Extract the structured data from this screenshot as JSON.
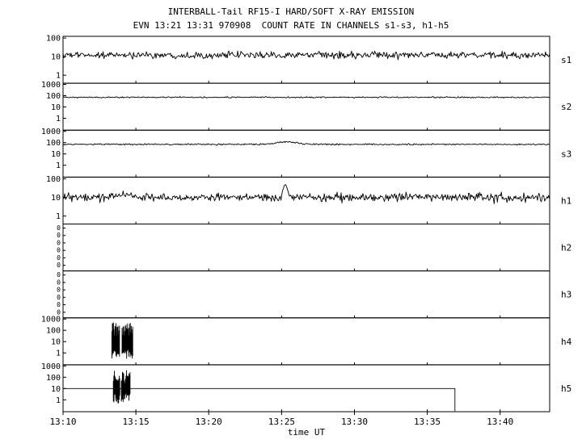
{
  "chart_data": {
    "type": "line",
    "title": "INTERBALL-Tail RF15-I HARD/SOFT X-RAY EMISSION",
    "subtitle": "EVN 13:21 13:31 970908  COUNT RATE IN CHANNELS s1-s3, h1-h5",
    "xlabel": "time UT",
    "x_ticks": [
      "13:10",
      "13:15",
      "13:20",
      "13:25",
      "13:30",
      "13:35",
      "13:40"
    ],
    "xlim_minutes": [
      790,
      823.4
    ],
    "grid": false,
    "legend": "none",
    "panels": [
      {
        "label": "s1",
        "yticks": [
          "100",
          "10",
          "1"
        ],
        "ylog_top": 2.09,
        "ylog_bottom": -0.43,
        "series": {
          "kind": "noisy",
          "baseline": 12,
          "sigma": 0.09,
          "features": []
        }
      },
      {
        "label": "s2",
        "yticks": [
          "1000",
          "100",
          "10",
          "1"
        ],
        "ylog_top": 3.1,
        "ylog_bottom": -1.05,
        "series": {
          "kind": "noisy",
          "baseline": 72,
          "sigma": 0.028,
          "features": []
        }
      },
      {
        "label": "s3",
        "yticks": [
          "1000",
          "100",
          "10",
          "1"
        ],
        "ylog_top": 3.1,
        "ylog_bottom": -1.05,
        "series": {
          "kind": "noisy",
          "baseline": 70,
          "sigma": 0.03,
          "features": [
            {
              "kind": "factor_bump",
              "center": 805.4,
              "width": 0.9,
              "factor": 0.65
            }
          ]
        }
      },
      {
        "label": "h1",
        "yticks": [
          "100",
          "10",
          "1"
        ],
        "ylog_top": 2.09,
        "ylog_bottom": -0.43,
        "series": {
          "kind": "noisy",
          "baseline": 10,
          "sigma": 0.11,
          "features": [
            {
              "kind": "add_bump",
              "center": 805.25,
              "width": 0.15,
              "amp": 42
            },
            {
              "kind": "add_bump",
              "center": 794.2,
              "width": 0.8,
              "amp": 5
            }
          ]
        }
      },
      {
        "label": "h2",
        "linear": true,
        "yticks": [
          "0",
          "0",
          "0",
          "0",
          "0",
          "0"
        ],
        "series": {
          "kind": "none"
        }
      },
      {
        "label": "h3",
        "linear": true,
        "yticks": [
          "0",
          "0",
          "0",
          "0",
          "0",
          "0"
        ],
        "series": {
          "kind": "none"
        }
      },
      {
        "label": "h4",
        "yticks": [
          "1000",
          "100",
          "10",
          "1"
        ],
        "ylog_top": 3.1,
        "ylog_bottom": -1.05,
        "series": {
          "kind": "bursts",
          "bursts": [
            {
              "start": 793.35,
              "end": 793.9
            },
            {
              "start": 794.05,
              "end": 794.8
            }
          ],
          "hi_log": [
            1.5,
            2.7
          ],
          "lo_log": [
            -0.5,
            0.3
          ]
        }
      },
      {
        "label": "h5",
        "yticks": [
          "1000",
          "100",
          "10",
          "1"
        ],
        "ylog_top": 3.1,
        "ylog_bottom": -1.05,
        "series": {
          "kind": "level_bursts",
          "level": 10,
          "drop_min": 816.9,
          "bursts": [
            {
              "start": 793.45,
              "end": 793.9
            },
            {
              "start": 794.0,
              "end": 794.6
            }
          ],
          "hi_log": [
            1.4,
            2.6
          ],
          "lo_log": [
            -0.3,
            0.6
          ]
        }
      }
    ]
  }
}
